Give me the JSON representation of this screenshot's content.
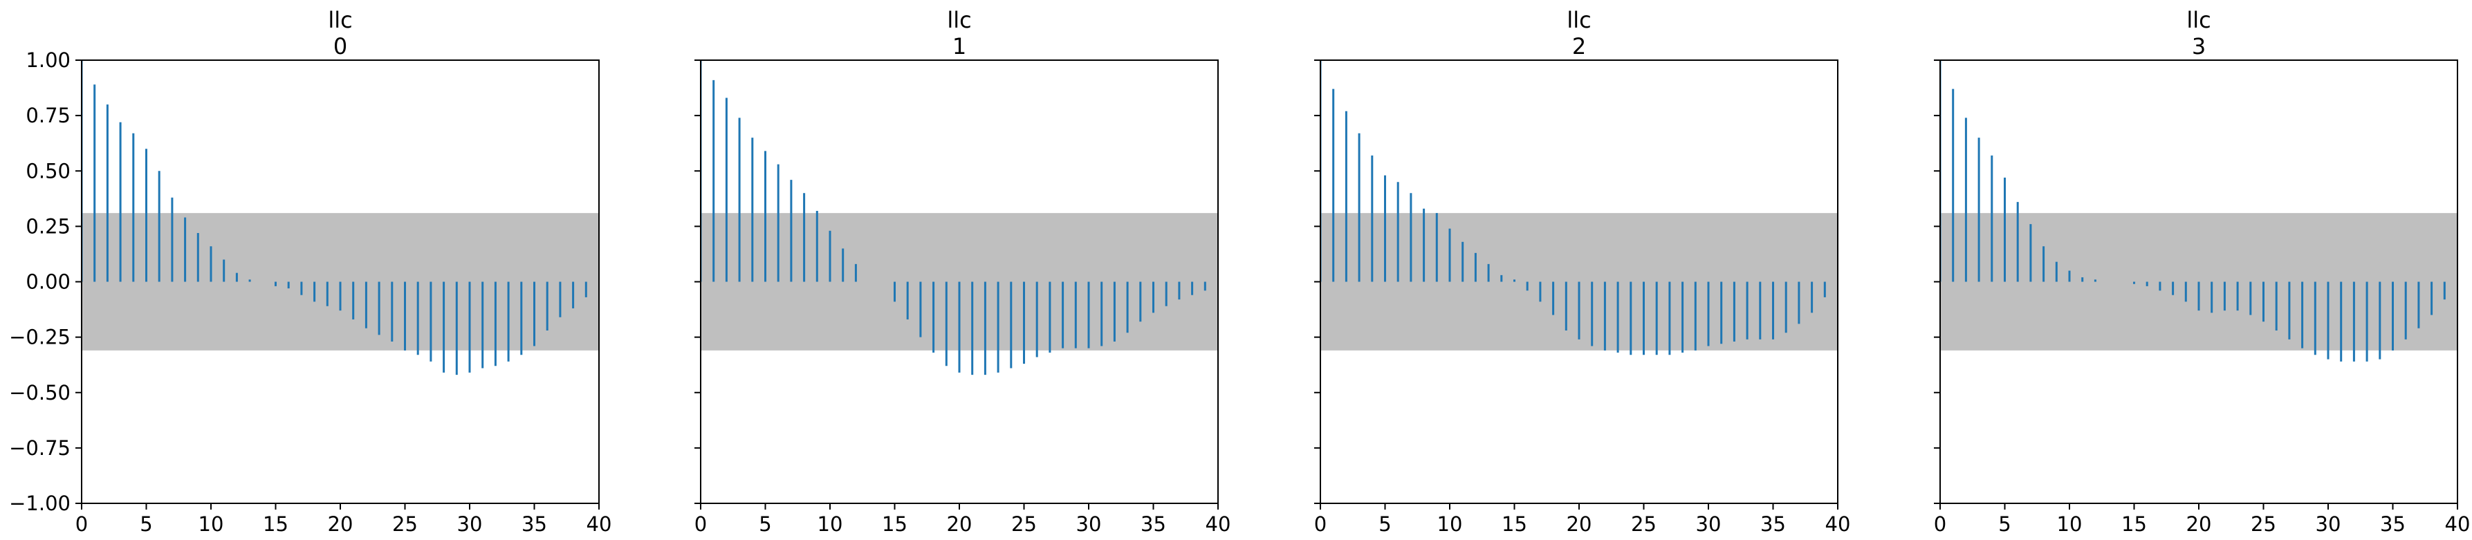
{
  "figure": {
    "colors": {
      "stem": "#1f77b4",
      "band": "#bfbfbf",
      "axis": "#000000"
    }
  },
  "chart_data": [
    {
      "type": "bar",
      "title": "llc\n0",
      "title_lines": [
        "llc",
        "0"
      ],
      "xlim": [
        0,
        40
      ],
      "ylim": [
        -1.0,
        1.0
      ],
      "x_ticks": [
        0,
        5,
        10,
        15,
        20,
        25,
        30,
        35,
        40
      ],
      "x_tick_labels": [
        "0",
        "5",
        "10",
        "15",
        "20",
        "25",
        "30",
        "35",
        "40"
      ],
      "y_ticks": [
        1.0,
        0.75,
        0.5,
        0.25,
        0.0,
        -0.25,
        -0.5,
        -0.75,
        -1.0
      ],
      "y_tick_labels": [
        "1.00",
        "0.75",
        "0.50",
        "0.25",
        "0.00",
        "−0.25",
        "−0.50",
        "−0.75",
        "−1.00"
      ],
      "show_y_labels": true,
      "confidence_band": 0.31,
      "x": [
        0,
        1,
        2,
        3,
        4,
        5,
        6,
        7,
        8,
        9,
        10,
        11,
        12,
        13,
        14,
        15,
        16,
        17,
        18,
        19,
        20,
        21,
        22,
        23,
        24,
        25,
        26,
        27,
        28,
        29,
        30,
        31,
        32,
        33,
        34,
        35,
        36,
        37,
        38,
        39
      ],
      "values": [
        1.0,
        0.89,
        0.8,
        0.72,
        0.67,
        0.6,
        0.5,
        0.38,
        0.29,
        0.22,
        0.16,
        0.1,
        0.04,
        0.01,
        0.0,
        -0.02,
        -0.03,
        -0.06,
        -0.09,
        -0.11,
        -0.13,
        -0.17,
        -0.21,
        -0.24,
        -0.27,
        -0.31,
        -0.33,
        -0.36,
        -0.41,
        -0.42,
        -0.41,
        -0.39,
        -0.38,
        -0.36,
        -0.33,
        -0.29,
        -0.22,
        -0.16,
        -0.12,
        -0.07
      ]
    },
    {
      "type": "bar",
      "title": "llc\n1",
      "title_lines": [
        "llc",
        "1"
      ],
      "xlim": [
        0,
        40
      ],
      "ylim": [
        -1.0,
        1.0
      ],
      "x_ticks": [
        0,
        5,
        10,
        15,
        20,
        25,
        30,
        35,
        40
      ],
      "x_tick_labels": [
        "0",
        "5",
        "10",
        "15",
        "20",
        "25",
        "30",
        "35",
        "40"
      ],
      "y_ticks": [
        1.0,
        0.75,
        0.5,
        0.25,
        0.0,
        -0.25,
        -0.5,
        -0.75,
        -1.0
      ],
      "y_tick_labels": [
        "1.00",
        "0.75",
        "0.50",
        "0.25",
        "0.00",
        "−0.25",
        "−0.50",
        "−0.75",
        "−1.00"
      ],
      "show_y_labels": false,
      "confidence_band": 0.31,
      "x": [
        0,
        1,
        2,
        3,
        4,
        5,
        6,
        7,
        8,
        9,
        10,
        11,
        12,
        13,
        14,
        15,
        16,
        17,
        18,
        19,
        20,
        21,
        22,
        23,
        24,
        25,
        26,
        27,
        28,
        29,
        30,
        31,
        32,
        33,
        34,
        35,
        36,
        37,
        38,
        39
      ],
      "values": [
        1.0,
        0.91,
        0.83,
        0.74,
        0.65,
        0.59,
        0.53,
        0.46,
        0.4,
        0.32,
        0.23,
        0.15,
        0.08,
        0.0,
        0.0,
        -0.09,
        -0.17,
        -0.25,
        -0.32,
        -0.38,
        -0.41,
        -0.42,
        -0.42,
        -0.41,
        -0.39,
        -0.37,
        -0.34,
        -0.32,
        -0.3,
        -0.3,
        -0.3,
        -0.29,
        -0.27,
        -0.23,
        -0.18,
        -0.14,
        -0.11,
        -0.08,
        -0.06,
        -0.04
      ]
    },
    {
      "type": "bar",
      "title": "llc\n2",
      "title_lines": [
        "llc",
        "2"
      ],
      "xlim": [
        0,
        40
      ],
      "ylim": [
        -1.0,
        1.0
      ],
      "x_ticks": [
        0,
        5,
        10,
        15,
        20,
        25,
        30,
        35,
        40
      ],
      "x_tick_labels": [
        "0",
        "5",
        "10",
        "15",
        "20",
        "25",
        "30",
        "35",
        "40"
      ],
      "y_ticks": [
        1.0,
        0.75,
        0.5,
        0.25,
        0.0,
        -0.25,
        -0.5,
        -0.75,
        -1.0
      ],
      "y_tick_labels": [
        "1.00",
        "0.75",
        "0.50",
        "0.25",
        "0.00",
        "−0.25",
        "−0.50",
        "−0.75",
        "−1.00"
      ],
      "show_y_labels": false,
      "confidence_band": 0.31,
      "x": [
        0,
        1,
        2,
        3,
        4,
        5,
        6,
        7,
        8,
        9,
        10,
        11,
        12,
        13,
        14,
        15,
        16,
        17,
        18,
        19,
        20,
        21,
        22,
        23,
        24,
        25,
        26,
        27,
        28,
        29,
        30,
        31,
        32,
        33,
        34,
        35,
        36,
        37,
        38,
        39
      ],
      "values": [
        1.0,
        0.87,
        0.77,
        0.67,
        0.57,
        0.48,
        0.45,
        0.4,
        0.33,
        0.31,
        0.24,
        0.18,
        0.13,
        0.08,
        0.03,
        0.01,
        -0.04,
        -0.09,
        -0.15,
        -0.22,
        -0.26,
        -0.29,
        -0.31,
        -0.32,
        -0.33,
        -0.33,
        -0.33,
        -0.33,
        -0.32,
        -0.31,
        -0.29,
        -0.28,
        -0.27,
        -0.26,
        -0.26,
        -0.26,
        -0.23,
        -0.19,
        -0.14,
        -0.07
      ]
    },
    {
      "type": "bar",
      "title": "llc\n3",
      "title_lines": [
        "llc",
        "3"
      ],
      "xlim": [
        0,
        40
      ],
      "ylim": [
        -1.0,
        1.0
      ],
      "x_ticks": [
        0,
        5,
        10,
        15,
        20,
        25,
        30,
        35,
        40
      ],
      "x_tick_labels": [
        "0",
        "5",
        "10",
        "15",
        "20",
        "25",
        "30",
        "35",
        "40"
      ],
      "y_ticks": [
        1.0,
        0.75,
        0.5,
        0.25,
        0.0,
        -0.25,
        -0.5,
        -0.75,
        -1.0
      ],
      "y_tick_labels": [
        "1.00",
        "0.75",
        "0.50",
        "0.25",
        "0.00",
        "−0.25",
        "−0.50",
        "−0.75",
        "−1.00"
      ],
      "show_y_labels": false,
      "confidence_band": 0.31,
      "x": [
        0,
        1,
        2,
        3,
        4,
        5,
        6,
        7,
        8,
        9,
        10,
        11,
        12,
        13,
        14,
        15,
        16,
        17,
        18,
        19,
        20,
        21,
        22,
        23,
        24,
        25,
        26,
        27,
        28,
        29,
        30,
        31,
        32,
        33,
        34,
        35,
        36,
        37,
        38,
        39
      ],
      "values": [
        1.0,
        0.87,
        0.74,
        0.65,
        0.57,
        0.47,
        0.36,
        0.26,
        0.16,
        0.09,
        0.05,
        0.02,
        0.01,
        0.0,
        0.0,
        -0.01,
        -0.02,
        -0.04,
        -0.06,
        -0.09,
        -0.13,
        -0.14,
        -0.13,
        -0.13,
        -0.15,
        -0.18,
        -0.22,
        -0.26,
        -0.3,
        -0.33,
        -0.35,
        -0.36,
        -0.36,
        -0.36,
        -0.35,
        -0.31,
        -0.26,
        -0.21,
        -0.15,
        -0.08
      ]
    }
  ]
}
